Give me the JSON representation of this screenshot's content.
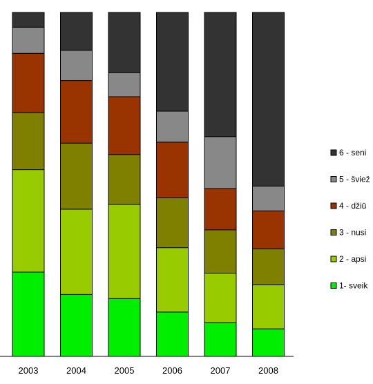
{
  "chart_data": {
    "type": "bar",
    "stacked": true,
    "normalized_to": 100,
    "title": "",
    "xlabel": "",
    "ylabel": "",
    "ylim": [
      0,
      100
    ],
    "grid": false,
    "legend_position": "right",
    "categories": [
      "2003",
      "2004",
      "2005",
      "2006",
      "2007",
      "2008"
    ],
    "series": [
      {
        "name": "1- sveik",
        "color": "#00ee00",
        "values": [
          24.5,
          18,
          16.8,
          12.9,
          9.8,
          8
        ]
      },
      {
        "name": "2 - apsi",
        "color": "#99cc00",
        "values": [
          29.8,
          24.8,
          27.4,
          18.7,
          14.4,
          12.8
        ]
      },
      {
        "name": "3 - nusi",
        "color": "#808000",
        "values": [
          16.6,
          19.2,
          14.5,
          14.5,
          12.6,
          10.5
        ]
      },
      {
        "name": "4 - džiū",
        "color": "#993300",
        "values": [
          17.2,
          18.2,
          16.8,
          16.2,
          12,
          11
        ]
      },
      {
        "name": "5 - šviež",
        "color": "#888888",
        "values": [
          7.6,
          8.8,
          7,
          9,
          15.1,
          7.2
        ]
      },
      {
        "name": "6 - seni",
        "color": "#333333",
        "values": [
          4.3,
          11,
          17.5,
          28.7,
          36.1,
          50.5
        ]
      }
    ]
  }
}
